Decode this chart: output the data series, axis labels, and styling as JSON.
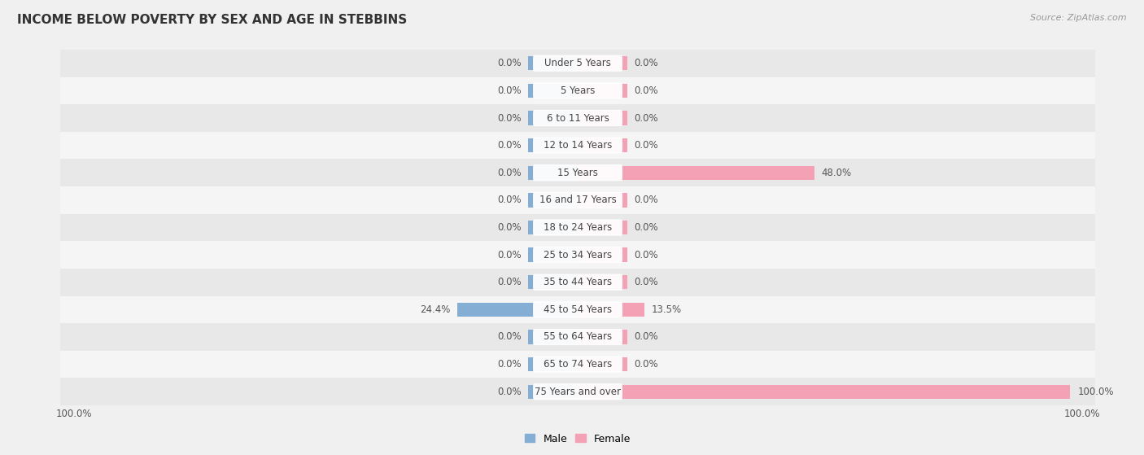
{
  "title": "INCOME BELOW POVERTY BY SEX AND AGE IN STEBBINS",
  "source": "Source: ZipAtlas.com",
  "categories": [
    "Under 5 Years",
    "5 Years",
    "6 to 11 Years",
    "12 to 14 Years",
    "15 Years",
    "16 and 17 Years",
    "18 to 24 Years",
    "25 to 34 Years",
    "35 to 44 Years",
    "45 to 54 Years",
    "55 to 64 Years",
    "65 to 74 Years",
    "75 Years and over"
  ],
  "male_values": [
    0.0,
    0.0,
    0.0,
    0.0,
    0.0,
    0.0,
    0.0,
    0.0,
    0.0,
    24.4,
    0.0,
    0.0,
    0.0
  ],
  "female_values": [
    0.0,
    0.0,
    0.0,
    0.0,
    48.0,
    0.0,
    0.0,
    0.0,
    0.0,
    13.5,
    0.0,
    0.0,
    100.0
  ],
  "male_color": "#85aed4",
  "female_color": "#f4a0b5",
  "bar_height": 0.52,
  "default_bar_width": 10,
  "xlim": 100,
  "bg_color": "#f0f0f0",
  "row_color_even": "#e8e8e8",
  "row_color_odd": "#f5f5f5",
  "title_fontsize": 11,
  "label_fontsize": 8.5,
  "cat_fontsize": 8.5,
  "legend_fontsize": 9,
  "source_fontsize": 8
}
